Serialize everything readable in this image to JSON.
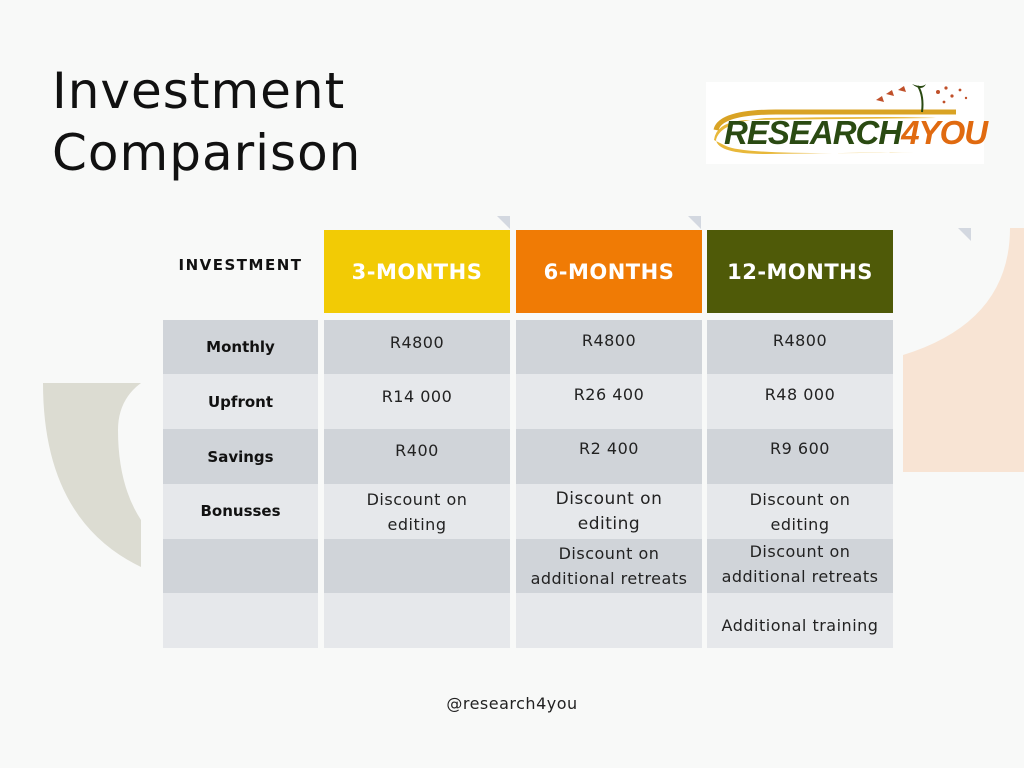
{
  "title": {
    "line1": "Investment",
    "line2": "Comparison"
  },
  "logo": {
    "text_main": "RESEARCH",
    "text_accent": "4YOU"
  },
  "table": {
    "corner_label": "INVESTMENT",
    "columns": [
      {
        "label": "3-MONTHS",
        "color": "#f2cb05"
      },
      {
        "label": "6-MONTHS",
        "color": "#f07b05"
      },
      {
        "label": "12-MONTHS",
        "color": "#4f5a08"
      }
    ],
    "row_labels": [
      "Monthly",
      "Upfront",
      "Savings",
      "Bonusses",
      "",
      ""
    ],
    "rows": [
      [
        "R4800",
        "R4800",
        "R4800"
      ],
      [
        "R14 000",
        "R26 400",
        "R48 000"
      ],
      [
        "R400",
        "R2 400",
        "R9 600"
      ],
      [
        "Discount on editing",
        "Discount on editing",
        "Discount on editing"
      ],
      [
        "",
        "Discount on additional retreats",
        "Discount on additional retreats"
      ],
      [
        "",
        "",
        "Additional training"
      ]
    ]
  },
  "colors": {
    "row_dark": "#d0d4d9",
    "row_light": "#e6e8eb",
    "decor_sage": "#dcdcd2",
    "decor_peach": "#f8e4d4"
  },
  "footer": {
    "handle": "@research4you"
  }
}
